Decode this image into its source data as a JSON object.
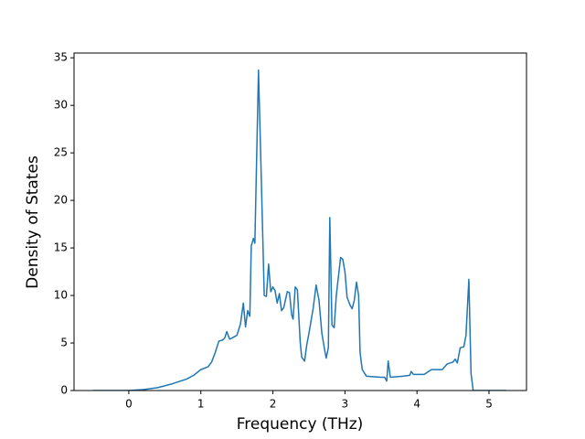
{
  "chart_data": {
    "type": "line",
    "x_label": "Frequency (THz)",
    "y_label": "Density of States",
    "xlim": [
      -0.76,
      5.52
    ],
    "ylim": [
      0,
      35.5
    ],
    "xticks": [
      0,
      1,
      2,
      3,
      4,
      5
    ],
    "yticks": [
      0,
      5,
      10,
      15,
      20,
      25,
      30,
      35
    ],
    "series": [
      {
        "color": "#1f77b4",
        "x": [
          -0.5,
          0,
          0.2,
          0.4,
          0.6,
          0.8,
          0.9,
          1.0,
          1.1,
          1.15,
          1.2,
          1.25,
          1.3,
          1.33,
          1.36,
          1.4,
          1.45,
          1.5,
          1.55,
          1.59,
          1.62,
          1.65,
          1.68,
          1.7,
          1.73,
          1.75,
          1.8,
          1.83,
          1.88,
          1.91,
          1.94,
          1.97,
          2.0,
          2.03,
          2.06,
          2.09,
          2.12,
          2.15,
          2.2,
          2.23,
          2.26,
          2.28,
          2.31,
          2.34,
          2.38,
          2.4,
          2.44,
          2.47,
          2.5,
          2.56,
          2.6,
          2.64,
          2.68,
          2.72,
          2.74,
          2.77,
          2.79,
          2.82,
          2.85,
          2.88,
          2.94,
          2.97,
          3.0,
          3.03,
          3.07,
          3.1,
          3.13,
          3.16,
          3.19,
          3.21,
          3.24,
          3.3,
          3.5,
          3.55,
          3.58,
          3.6,
          3.63,
          3.8,
          3.9,
          3.92,
          3.95,
          4.1,
          4.2,
          4.35,
          4.42,
          4.5,
          4.53,
          4.56,
          4.6,
          4.65,
          4.68,
          4.72,
          4.75,
          4.78,
          5.24
        ],
        "values": [
          0,
          0,
          0.1,
          0.3,
          0.7,
          1.2,
          1.6,
          2.2,
          2.5,
          3.0,
          4.0,
          5.2,
          5.3,
          5.5,
          6.2,
          5.4,
          5.6,
          5.8,
          7,
          9.2,
          6.7,
          8.4,
          7.8,
          15.2,
          16,
          15.5,
          33.7,
          25,
          10,
          9.9,
          13.3,
          10.4,
          10.9,
          10.5,
          9.2,
          10.2,
          8.4,
          8.7,
          10.4,
          10.3,
          8,
          7.5,
          10.9,
          10.6,
          5,
          3.5,
          3.1,
          4.8,
          6,
          8.7,
          11.1,
          9.5,
          6,
          4.2,
          3.4,
          4.5,
          18.2,
          6.9,
          6.6,
          10,
          14,
          13.8,
          12.5,
          9.8,
          9,
          8.6,
          9.5,
          11.4,
          10,
          4,
          2.2,
          1.5,
          1.4,
          1.4,
          1.0,
          3.1,
          1.4,
          1.5,
          1.6,
          2,
          1.7,
          1.7,
          2.2,
          2.2,
          2.8,
          3.0,
          3.3,
          2.9,
          4.5,
          4.6,
          5.8,
          11.7,
          1.8,
          0,
          0
        ]
      }
    ]
  }
}
